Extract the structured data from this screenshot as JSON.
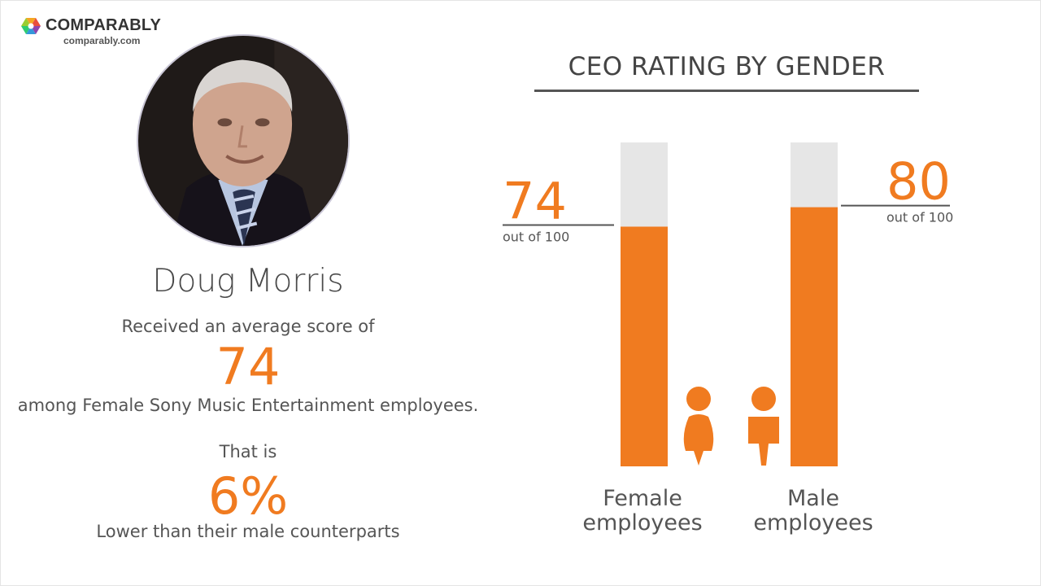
{
  "brand": {
    "name": "COMPARABLY",
    "url": "comparably.com"
  },
  "ceo": {
    "name": "Doug Morris",
    "received_text": "Received an average score of",
    "score": "74",
    "among_text": "among Female Sony Music Entertainment employees.",
    "that_is_text": "That is",
    "difference": "6%",
    "lower_text": "Lower than their male counterparts"
  },
  "colors": {
    "accent": "#f07b20",
    "track": "#e6e6e6",
    "text": "#555555"
  },
  "chart_data": {
    "type": "bar",
    "title": "CEO RATING BY GENDER",
    "categories": [
      "Female employees",
      "Male employees"
    ],
    "category_lines": [
      [
        "Female",
        "employees"
      ],
      [
        "Male",
        "employees"
      ]
    ],
    "values": [
      74,
      80
    ],
    "value_labels": [
      "74",
      "80"
    ],
    "max": 100,
    "sublabel": "out of 100",
    "ylim": [
      0,
      100
    ]
  }
}
